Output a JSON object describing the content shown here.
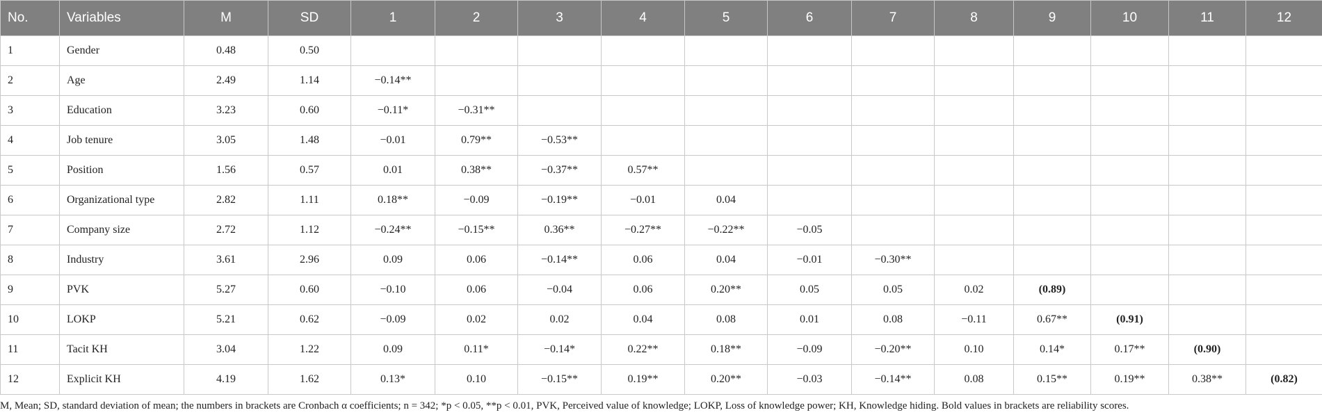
{
  "table": {
    "header": [
      "No.",
      "Variables",
      "M",
      "SD",
      "1",
      "2",
      "3",
      "4",
      "5",
      "6",
      "7",
      "8",
      "9",
      "10",
      "11",
      "12"
    ],
    "rows": [
      [
        "1",
        "Gender",
        "0.48",
        "0.50"
      ],
      [
        "2",
        "Age",
        "2.49",
        "1.14",
        "−0.14**"
      ],
      [
        "3",
        "Education",
        "3.23",
        "0.60",
        "−0.11*",
        "−0.31**"
      ],
      [
        "4",
        "Job tenure",
        "3.05",
        "1.48",
        "−0.01",
        "0.79**",
        "−0.53**"
      ],
      [
        "5",
        "Position",
        "1.56",
        "0.57",
        "0.01",
        "0.38**",
        "−0.37**",
        "0.57**"
      ],
      [
        "6",
        "Organizational type",
        "2.82",
        "1.11",
        "0.18**",
        "−0.09",
        "−0.19**",
        "−0.01",
        "0.04"
      ],
      [
        "7",
        "Company size",
        "2.72",
        "1.12",
        "−0.24**",
        "−0.15**",
        "0.36**",
        "−0.27**",
        "−0.22**",
        "−0.05"
      ],
      [
        "8",
        "Industry",
        "3.61",
        "2.96",
        "0.09",
        "0.06",
        "−0.14**",
        "0.06",
        "0.04",
        "−0.01",
        "−0.30**"
      ],
      [
        "9",
        "PVK",
        "5.27",
        "0.60",
        "−0.10",
        "0.06",
        "−0.04",
        "0.06",
        "0.20**",
        "0.05",
        "0.05",
        "0.02",
        "(0.89)"
      ],
      [
        "10",
        "LOKP",
        "5.21",
        "0.62",
        "−0.09",
        "0.02",
        "0.02",
        "0.04",
        "0.08",
        "0.01",
        "0.08",
        "−0.11",
        "0.67**",
        "(0.91)"
      ],
      [
        "11",
        "Tacit KH",
        "3.04",
        "1.22",
        "0.09",
        "0.11*",
        "−0.14*",
        "0.22**",
        "0.18**",
        "−0.09",
        "−0.20**",
        "0.10",
        "0.14*",
        "0.17**",
        "(0.90)"
      ],
      [
        "12",
        "Explicit KH",
        "4.19",
        "1.62",
        "0.13*",
        "0.10",
        "−0.15**",
        "0.19**",
        "0.20**",
        "−0.03",
        "−0.14**",
        "0.08",
        "0.15**",
        "0.19**",
        "0.38**",
        "(0.82)"
      ]
    ],
    "note": "M, Mean; SD, standard deviation of mean; the numbers in brackets are Cronbach α coefficients; n = 342; *p < 0.05, **p < 0.01, PVK, Perceived value of knowledge; LOKP, Loss of knowledge power; KH, Knowledge hiding. Bold values in brackets are reliability scores."
  }
}
